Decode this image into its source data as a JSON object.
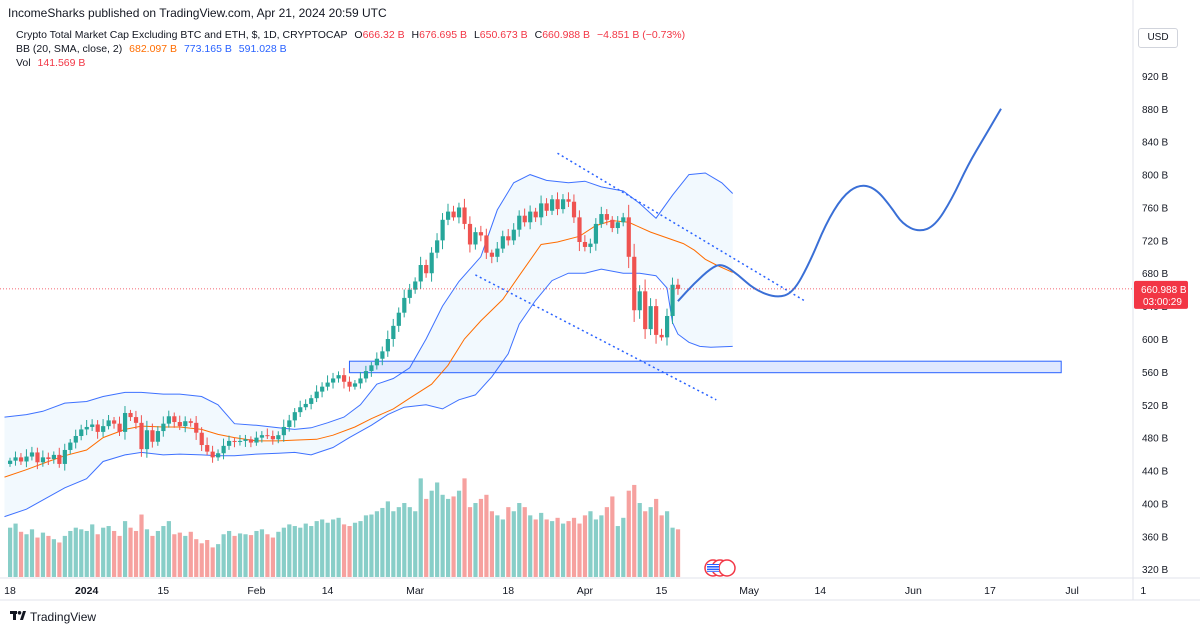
{
  "header": {
    "published": "IncomeSharks published on TradingView.com, Apr 21, 2024 20:59 UTC"
  },
  "legend": {
    "symbol": "Crypto Total Market Cap Excluding BTC and ETH, $, 1D, CRYPTOCAP",
    "o_label": "O",
    "o": "666.32 B",
    "h_label": "H",
    "h": "676.695 B",
    "l_label": "L",
    "l": "650.673 B",
    "c_label": "C",
    "c": "660.988 B",
    "change": "−4.851 B (−0.73%)",
    "bb_label": "BB (20, SMA, close, 2)",
    "bb_mid": "682.097 B",
    "bb_upper": "773.165 B",
    "bb_lower": "591.028 B",
    "vol_label": "Vol",
    "vol": "141.569 B"
  },
  "currency": "USD",
  "price_tag": {
    "price": "660.988 B",
    "countdown": "03:00:29"
  },
  "footer": {
    "brand": "TradingView"
  },
  "colors": {
    "up": "#26a69a",
    "down": "#ef5350",
    "band": "#2962ff",
    "basis": "#ff6d00",
    "box": "#2962ff"
  },
  "chart_data": {
    "type": "candlestick",
    "title": "Crypto Total Market Cap Excluding BTC and ETH, $, 1D, CRYPTOCAP",
    "y_unit": "B USD",
    "ylim": [
      290,
      950
    ],
    "y_ticks": [
      320,
      360,
      400,
      440,
      480,
      520,
      560,
      600,
      640,
      680,
      720,
      760,
      800,
      840,
      880,
      920
    ],
    "y_tick_labels": [
      "320 B",
      "360 B",
      "400 B",
      "440 B",
      "480 B",
      "520 B",
      "560 B",
      "600 B",
      "640 B",
      "680 B",
      "720 B",
      "760 B",
      "800 B",
      "840 B",
      "880 B",
      "920 B"
    ],
    "x_labels": [
      {
        "day": 0,
        "label": "18"
      },
      {
        "day": 14,
        "label": "2024"
      },
      {
        "day": 28,
        "label": "15"
      },
      {
        "day": 45,
        "label": "Feb"
      },
      {
        "day": 58,
        "label": "14"
      },
      {
        "day": 74,
        "label": "Mar"
      },
      {
        "day": 91,
        "label": "18"
      },
      {
        "day": 105,
        "label": "Apr"
      },
      {
        "day": 119,
        "label": "15"
      },
      {
        "day": 135,
        "label": "May"
      },
      {
        "day": 148,
        "label": "14"
      },
      {
        "day": 165,
        "label": "Jun"
      },
      {
        "day": 179,
        "label": "17"
      },
      {
        "day": 194,
        "label": "Jul"
      },
      {
        "day": 207,
        "label": "1"
      }
    ],
    "close": [
      452,
      456,
      451,
      457,
      462,
      450,
      456,
      454,
      459,
      448,
      465,
      474,
      482,
      490,
      493,
      496,
      487,
      494,
      501,
      497,
      487,
      510,
      505,
      498,
      466,
      489,
      475,
      488,
      497,
      506,
      499,
      494,
      500,
      498,
      486,
      471,
      463,
      456,
      461,
      470,
      476,
      475,
      476,
      478,
      474,
      480,
      483,
      482,
      478,
      483,
      493,
      501,
      511,
      517,
      521,
      528,
      536,
      542,
      547,
      552,
      556,
      548,
      542,
      546,
      552,
      561,
      568,
      576,
      585,
      600,
      616,
      632,
      650,
      660,
      670,
      690,
      680,
      705,
      720,
      745,
      755,
      748,
      760,
      740,
      715,
      730,
      726,
      705,
      700,
      710,
      725,
      720,
      733,
      750,
      742,
      755,
      748,
      765,
      756,
      770,
      758,
      770,
      767,
      748,
      718,
      712,
      716,
      740,
      752,
      745,
      735,
      742,
      748,
      700,
      635,
      658,
      612,
      640,
      605,
      602,
      628,
      666,
      661
    ],
    "vol": [
      360,
      365,
      355,
      352,
      358,
      348,
      354,
      350,
      346,
      342,
      350,
      356,
      360,
      358,
      356,
      364,
      352,
      360,
      362,
      356,
      350,
      368,
      360,
      356,
      376,
      358,
      350,
      356,
      362,
      368,
      352,
      354,
      350,
      355,
      346,
      341,
      345,
      336,
      340,
      352,
      356,
      350,
      353,
      352,
      351,
      356,
      358,
      352,
      348,
      355,
      360,
      364,
      362,
      360,
      365,
      362,
      368,
      370,
      366,
      370,
      372,
      364,
      362,
      366,
      368,
      375,
      376,
      380,
      384,
      392,
      380,
      385,
      390,
      385,
      380,
      420,
      395,
      405,
      415,
      400,
      395,
      398,
      405,
      420,
      385,
      390,
      395,
      400,
      380,
      375,
      370,
      385,
      380,
      390,
      385,
      375,
      370,
      378,
      370,
      368,
      372,
      365,
      368,
      372,
      365,
      375,
      380,
      370,
      375,
      385,
      398,
      362,
      372,
      405,
      412,
      390,
      380,
      385,
      395,
      375,
      380,
      360,
      358
    ],
    "bb_upper": [
      [
        -1,
        505
      ],
      [
        3,
        508
      ],
      [
        6,
        512
      ],
      [
        10,
        522
      ],
      [
        14,
        524
      ],
      [
        17,
        530
      ],
      [
        21,
        535
      ],
      [
        24,
        535
      ],
      [
        28,
        533
      ],
      [
        31,
        533
      ],
      [
        35,
        530
      ],
      [
        38,
        520
      ],
      [
        41,
        497
      ],
      [
        45,
        495
      ],
      [
        49,
        492
      ],
      [
        52,
        490
      ],
      [
        55,
        492
      ],
      [
        58,
        498
      ],
      [
        61,
        505
      ],
      [
        64,
        520
      ],
      [
        67,
        545
      ],
      [
        70,
        552
      ],
      [
        73,
        565
      ],
      [
        76,
        600
      ],
      [
        79,
        640
      ],
      [
        82,
        670
      ],
      [
        86,
        700
      ],
      [
        89,
        757
      ],
      [
        92,
        790
      ],
      [
        95,
        800
      ],
      [
        98,
        793
      ],
      [
        102,
        790
      ],
      [
        105,
        792
      ],
      [
        108,
        785
      ],
      [
        112,
        780
      ],
      [
        115,
        765
      ],
      [
        118,
        747
      ],
      [
        121,
        775
      ],
      [
        124,
        800
      ],
      [
        127,
        802
      ],
      [
        130,
        790
      ],
      [
        132,
        777
      ]
    ],
    "bb_basis": [
      [
        -1,
        432
      ],
      [
        3,
        441
      ],
      [
        7,
        451
      ],
      [
        10,
        458
      ],
      [
        14,
        465
      ],
      [
        17,
        480
      ],
      [
        21,
        490
      ],
      [
        24,
        494
      ],
      [
        28,
        493
      ],
      [
        31,
        493
      ],
      [
        35,
        490
      ],
      [
        38,
        484
      ],
      [
        41,
        480
      ],
      [
        45,
        476
      ],
      [
        49,
        476
      ],
      [
        52,
        477
      ],
      [
        56,
        478
      ],
      [
        59,
        483
      ],
      [
        63,
        493
      ],
      [
        66,
        503
      ],
      [
        70,
        515
      ],
      [
        73,
        528
      ],
      [
        77,
        545
      ],
      [
        80,
        568
      ],
      [
        83,
        600
      ],
      [
        86,
        622
      ],
      [
        90,
        648
      ],
      [
        93,
        677
      ],
      [
        97,
        715
      ],
      [
        100,
        718
      ],
      [
        104,
        725
      ],
      [
        107,
        738
      ],
      [
        110,
        744
      ],
      [
        113,
        742
      ],
      [
        117,
        730
      ],
      [
        120,
        723
      ],
      [
        123,
        716
      ],
      [
        125,
        708
      ],
      [
        127,
        697
      ],
      [
        129,
        690
      ],
      [
        132,
        681
      ]
    ],
    "bb_lower": [
      [
        -1,
        384
      ],
      [
        3,
        393
      ],
      [
        6,
        404
      ],
      [
        10,
        419
      ],
      [
        14,
        430
      ],
      [
        17,
        451
      ],
      [
        21,
        459
      ],
      [
        24,
        462
      ],
      [
        28,
        459
      ],
      [
        31,
        460
      ],
      [
        35,
        459
      ],
      [
        38,
        458
      ],
      [
        41,
        458
      ],
      [
        45,
        460
      ],
      [
        49,
        461
      ],
      [
        52,
        462
      ],
      [
        55,
        459
      ],
      [
        59,
        468
      ],
      [
        62,
        480
      ],
      [
        66,
        495
      ],
      [
        69,
        508
      ],
      [
        72,
        517
      ],
      [
        76,
        520
      ],
      [
        79,
        515
      ],
      [
        82,
        526
      ],
      [
        85,
        532
      ],
      [
        88,
        554
      ],
      [
        91,
        582
      ],
      [
        93,
        618
      ],
      [
        96,
        647
      ],
      [
        99,
        671
      ],
      [
        102,
        680
      ],
      [
        105,
        680
      ],
      [
        108,
        685
      ],
      [
        112,
        680
      ],
      [
        115,
        680
      ],
      [
        118,
        677
      ],
      [
        120,
        662
      ],
      [
        121,
        620
      ],
      [
        122,
        606
      ],
      [
        124,
        596
      ],
      [
        126,
        591
      ],
      [
        128,
        590
      ],
      [
        132,
        591
      ]
    ],
    "support_zone": {
      "low": 559,
      "high": 573,
      "from_day": 62,
      "to_day": 192
    },
    "trend_upper": [
      [
        100,
        826
      ],
      [
        145,
        647
      ]
    ],
    "trend_lower": [
      [
        85,
        678
      ],
      [
        129,
        526
      ]
    ],
    "projection": [
      [
        122,
        646
      ],
      [
        125,
        668
      ],
      [
        128,
        686
      ],
      [
        130,
        692
      ],
      [
        133,
        678
      ],
      [
        136,
        660
      ],
      [
        140,
        650
      ],
      [
        143,
        656
      ],
      [
        146,
        692
      ],
      [
        149,
        740
      ],
      [
        152,
        773
      ],
      [
        155,
        788
      ],
      [
        158,
        784
      ],
      [
        161,
        760
      ],
      [
        163,
        740
      ],
      [
        166,
        730
      ],
      [
        169,
        738
      ],
      [
        172,
        770
      ],
      [
        175,
        812
      ],
      [
        178,
        846
      ],
      [
        181,
        880
      ]
    ]
  }
}
